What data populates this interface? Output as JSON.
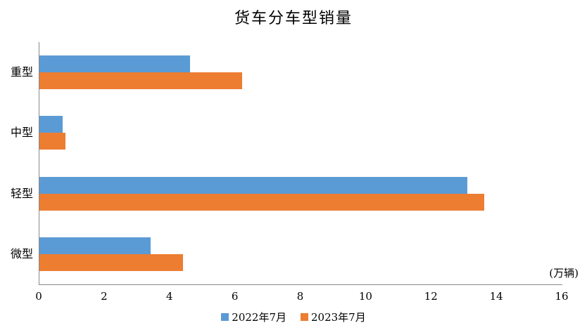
{
  "chart_data": {
    "type": "bar",
    "orientation": "horizontal",
    "title": "货车分车型销量",
    "unit_label": "(万辆)",
    "categories": [
      "重型",
      "中型",
      "轻型",
      "微型"
    ],
    "series": [
      {
        "name": "2022年7月",
        "color": "#5B9BD5",
        "values": [
          4.6,
          0.7,
          13.1,
          3.4
        ]
      },
      {
        "name": "2023年7月",
        "color": "#ED7D31",
        "values": [
          6.2,
          0.8,
          13.6,
          4.4
        ]
      }
    ],
    "xlabel": "",
    "ylabel": "",
    "xlim": [
      0,
      16
    ],
    "xticks": [
      0,
      2,
      4,
      6,
      8,
      10,
      12,
      14,
      16
    ],
    "grid": "off",
    "legend_position": "bottom-center",
    "axis_line_color": "#898989",
    "background_color": "#FFFFFF",
    "text_color": "#000000"
  }
}
